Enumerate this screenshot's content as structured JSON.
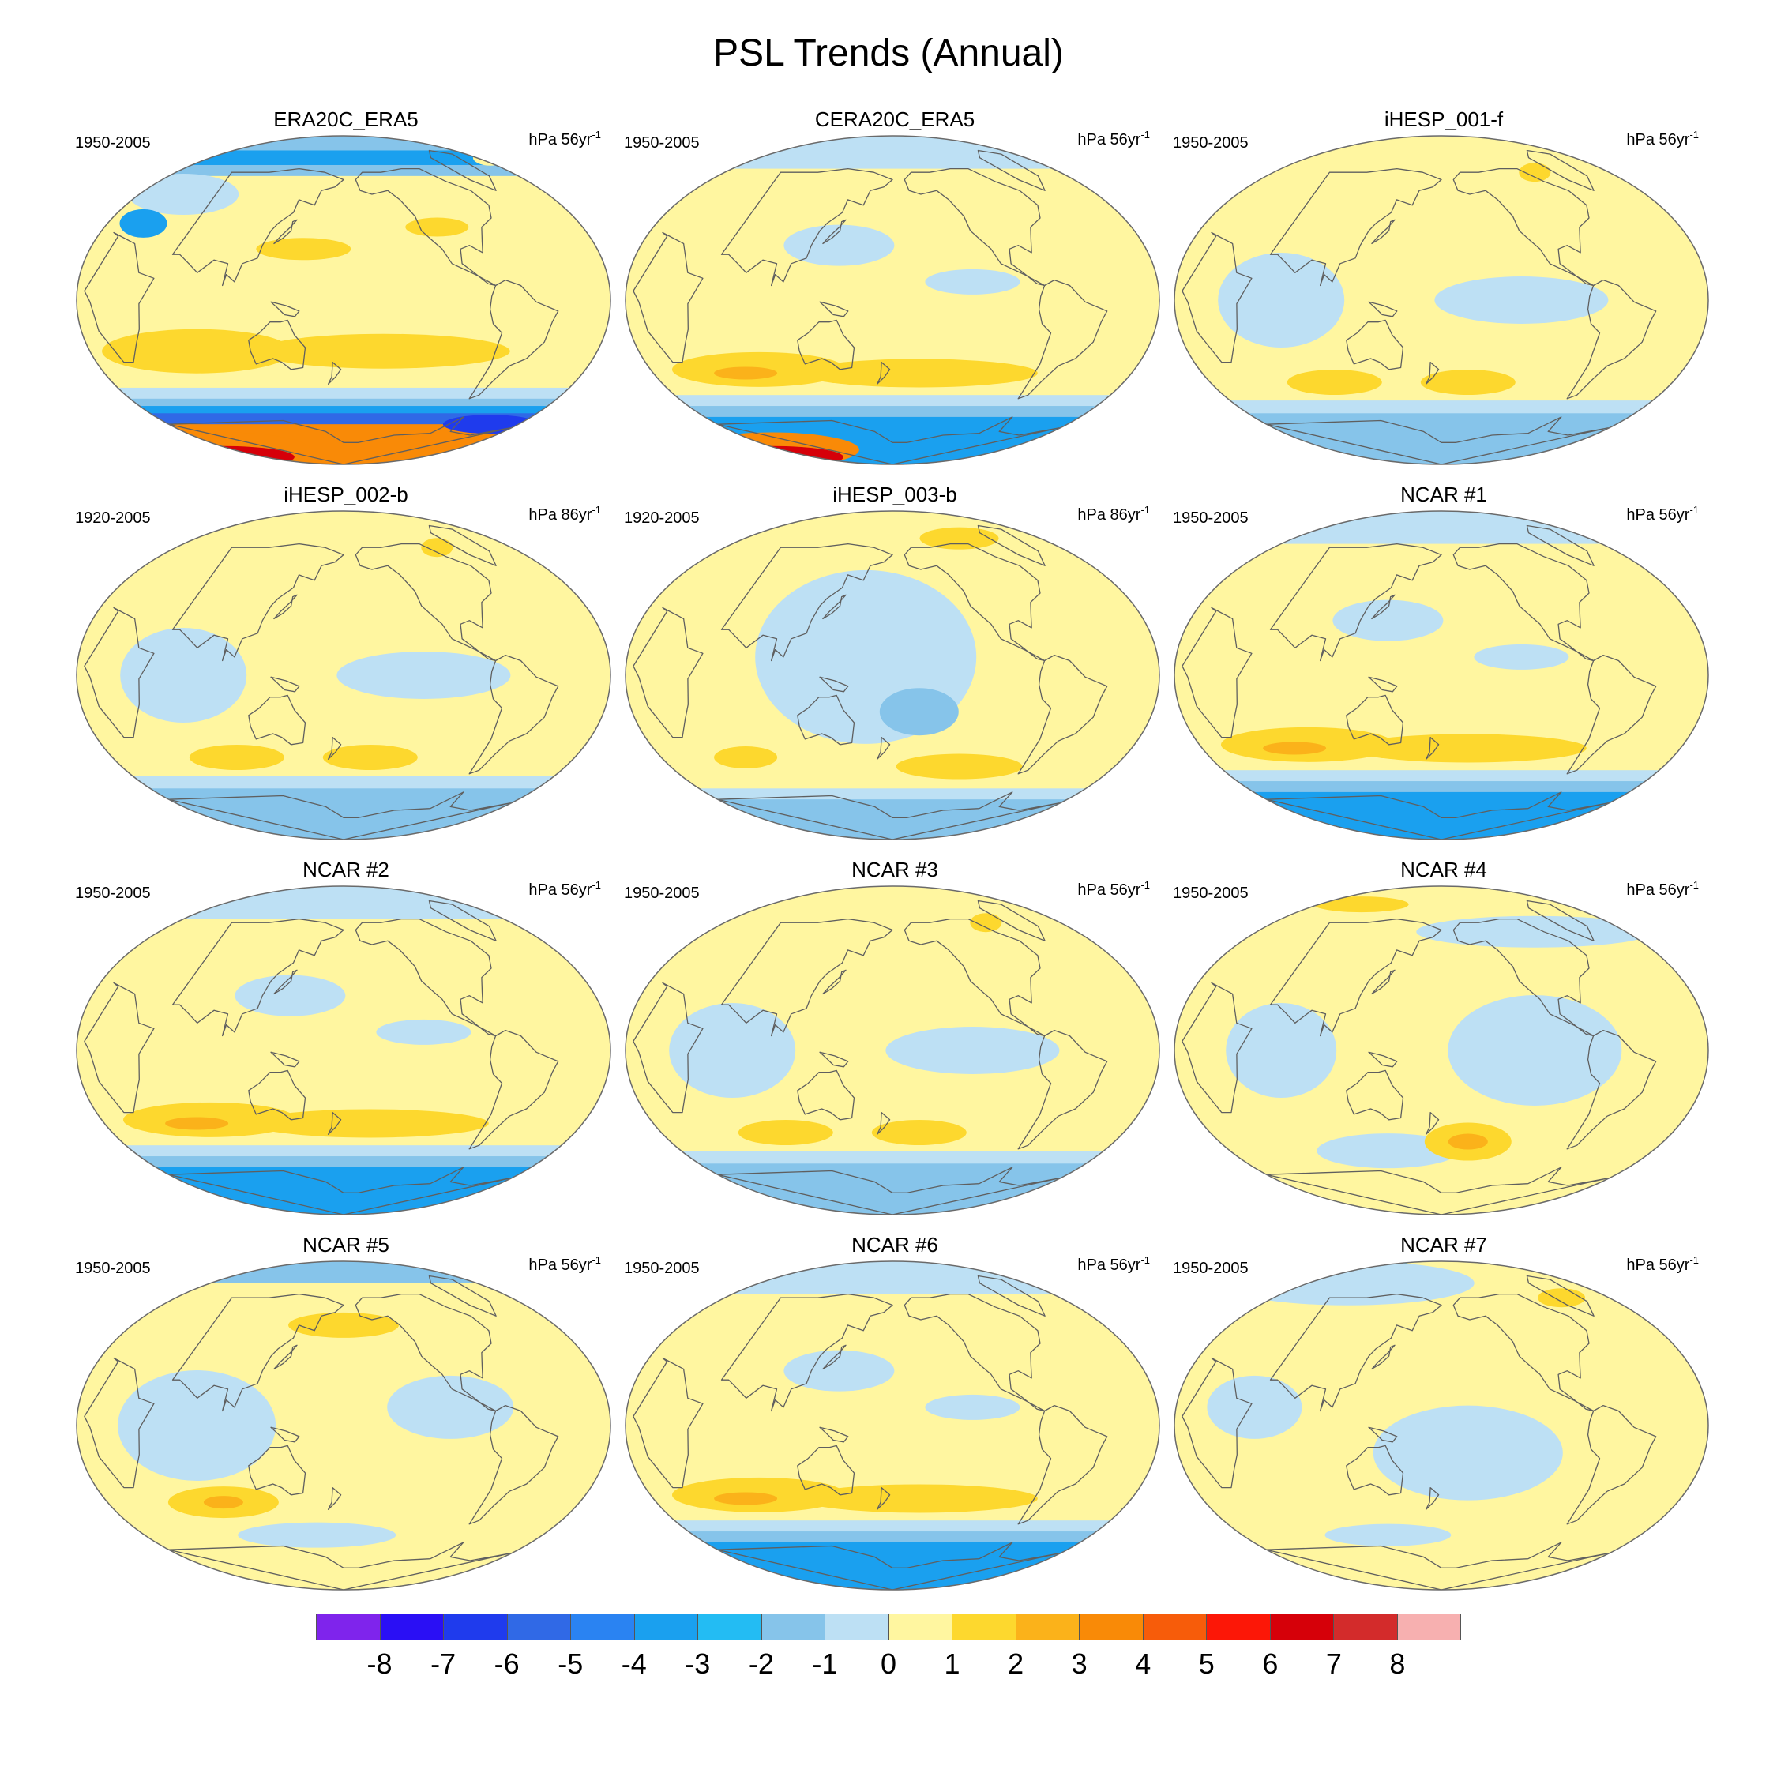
{
  "figure": {
    "title": "PSL Trends (Annual)"
  },
  "colors": {
    "levels": [
      "#7f24ec",
      "#2a0ff5",
      "#1f3bed",
      "#3069e6",
      "#2a83f2",
      "#1aa0ef",
      "#23bcf3",
      "#86c4ea",
      "#bde0f4",
      "#fff6a0",
      "#fdd82e",
      "#fbb21a",
      "#f98a07",
      "#f75c0a",
      "#fc1707",
      "#d60009",
      "#d32b2b",
      "#f7b0b0"
    ],
    "coastline": "#5f5f5f",
    "outline": "#6a6a6a"
  },
  "colorbar": {
    "labels": [
      "-8",
      "-7",
      "-6",
      "-5",
      "-4",
      "-3",
      "-2",
      "-1",
      "0",
      "1",
      "2",
      "3",
      "4",
      "5",
      "6",
      "7",
      "8"
    ]
  },
  "chart_data": {
    "type": "heatmap",
    "variable": "PSL",
    "projection": "Robinson (Pacific-centered)",
    "colorbar_levels": [
      -8,
      -7,
      -6,
      -5,
      -4,
      -3,
      -2,
      -1,
      0,
      1,
      2,
      3,
      4,
      5,
      6,
      7,
      8
    ],
    "panels": [
      {
        "title": "ERA20C_ERA5",
        "period": "1950-2005",
        "units": "hPa 56yr",
        "exp": "-1",
        "pattern": "strong-south-negative",
        "antarctic_positive": true
      },
      {
        "title": "CERA20C_ERA5",
        "period": "1950-2005",
        "units": "hPa 56yr",
        "exp": "-1",
        "pattern": "south-negative",
        "antarctic_positive": true
      },
      {
        "title": "iHESP_001-f",
        "period": "1950-2005",
        "units": "hPa 56yr",
        "exp": "-1",
        "pattern": "weak-south-negative",
        "antarctic_positive": false
      },
      {
        "title": "iHESP_002-b",
        "period": "1920-2005",
        "units": "hPa 86yr",
        "exp": "-1",
        "pattern": "weak-south-negative",
        "antarctic_positive": false
      },
      {
        "title": "iHESP_003-b",
        "period": "1920-2005",
        "units": "hPa 86yr",
        "exp": "-1",
        "pattern": "pacific-negative",
        "antarctic_positive": false
      },
      {
        "title": "NCAR #1",
        "period": "1950-2005",
        "units": "hPa 56yr",
        "exp": "-1",
        "pattern": "south-negative",
        "antarctic_positive": false
      },
      {
        "title": "NCAR #2",
        "period": "1950-2005",
        "units": "hPa 56yr",
        "exp": "-1",
        "pattern": "south-negative",
        "antarctic_positive": false
      },
      {
        "title": "NCAR #3",
        "period": "1950-2005",
        "units": "hPa 56yr",
        "exp": "-1",
        "pattern": "weak-south-negative",
        "antarctic_positive": false
      },
      {
        "title": "NCAR #4",
        "period": "1950-2005",
        "units": "hPa 56yr",
        "exp": "-1",
        "pattern": "mixed",
        "antarctic_positive": false
      },
      {
        "title": "NCAR #5",
        "period": "1950-2005",
        "units": "hPa 56yr",
        "exp": "-1",
        "pattern": "weak-mixed",
        "antarctic_positive": false
      },
      {
        "title": "NCAR #6",
        "period": "1950-2005",
        "units": "hPa 56yr",
        "exp": "-1",
        "pattern": "south-negative",
        "antarctic_positive": false
      },
      {
        "title": "NCAR #7",
        "period": "1950-2005",
        "units": "hPa 56yr",
        "exp": "-1",
        "pattern": "north-negative",
        "antarctic_positive": false
      }
    ]
  }
}
